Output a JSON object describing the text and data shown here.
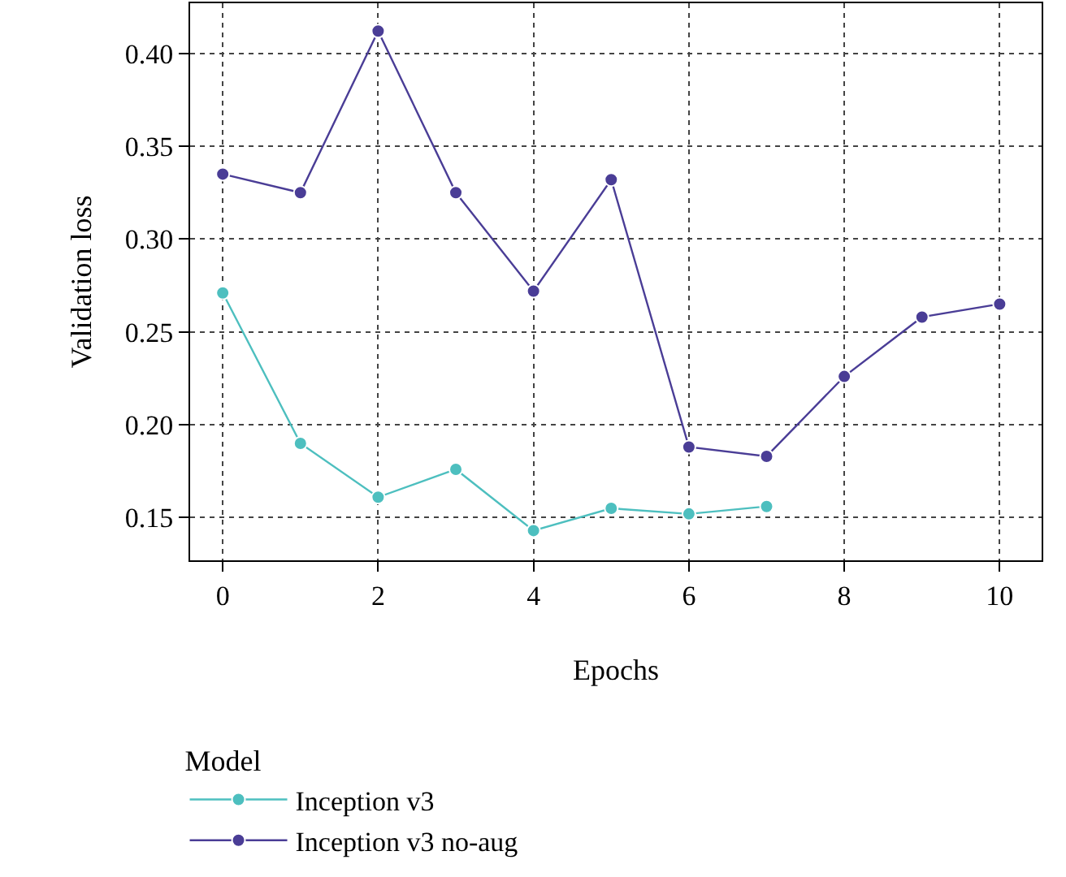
{
  "chart_data": {
    "type": "line",
    "xlabel": "Epochs",
    "ylabel": "Validation loss",
    "legend_title": "Model",
    "xlim": [
      -0.42,
      10.54
    ],
    "xticks": [
      0,
      2,
      4,
      6,
      8,
      10
    ],
    "ylim": [
      0.127,
      0.427
    ],
    "yticks": [
      0.15,
      {
        "value": 0.2,
        "label": "0.20"
      },
      0.25,
      {
        "value": 0.3,
        "label": "0.30"
      },
      0.35,
      {
        "value": 0.4,
        "label": "0.40"
      }
    ],
    "grid": true,
    "legend": "bottom left",
    "marker": "circle",
    "line_style": "solid",
    "series": [
      {
        "name": "Inception v3",
        "color": "#4dbfbf",
        "x": [
          0,
          1,
          2,
          3,
          4,
          5,
          6,
          7
        ],
        "values": [
          0.271,
          0.19,
          0.161,
          0.176,
          0.143,
          0.155,
          0.152,
          0.156
        ]
      },
      {
        "name": "Inception v3 no-aug",
        "color": "#4a3d96",
        "x": [
          0,
          1,
          2,
          3,
          4,
          5,
          6,
          7,
          8,
          9,
          10
        ],
        "values": [
          0.335,
          0.325,
          0.412,
          0.325,
          0.272,
          0.332,
          0.188,
          0.183,
          0.226,
          0.258,
          0.265
        ]
      }
    ]
  }
}
